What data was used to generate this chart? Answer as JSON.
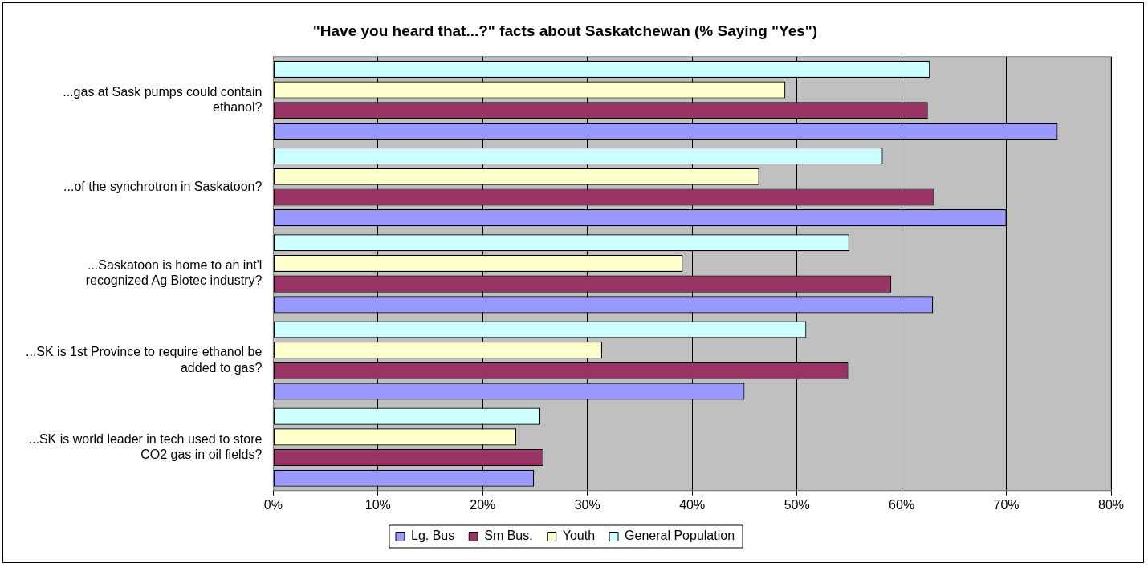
{
  "chart_data": {
    "type": "bar",
    "orientation": "horizontal",
    "title": "\"Have you heard that...?\" facts about Saskatchewan (% Saying \"Yes\")",
    "categories": [
      "...gas at Sask pumps could contain ethanol?",
      "...of the synchrotron in Saskatoon?",
      "...Saskatoon is home to an int'l recognized Ag Biotec industry?",
      "...SK is 1st Province to require ethanol be added to gas?",
      "...SK is world leader in tech used to store CO2 gas in oil fields?"
    ],
    "series": [
      {
        "name": "Lg. Bus",
        "color": "#9999ff",
        "values": [
          74.9,
          70.0,
          63.0,
          45.0,
          24.9
        ]
      },
      {
        "name": "Sm Bus.",
        "color": "#993366",
        "values": [
          62.5,
          63.1,
          59.0,
          54.9,
          25.8
        ]
      },
      {
        "name": "Youth",
        "color": "#ffffcc",
        "values": [
          48.9,
          46.4,
          39.1,
          31.4,
          23.2
        ]
      },
      {
        "name": "General Population",
        "color": "#ccffff",
        "values": [
          62.7,
          58.2,
          55.0,
          50.9,
          25.5
        ]
      }
    ],
    "xlim": [
      0,
      80
    ],
    "xticks": [
      {
        "value": 0,
        "label": "0%"
      },
      {
        "value": 10,
        "label": "10%"
      },
      {
        "value": 20,
        "label": "20%"
      },
      {
        "value": 30,
        "label": "30%"
      },
      {
        "value": 40,
        "label": "40%"
      },
      {
        "value": 50,
        "label": "50%"
      },
      {
        "value": 60,
        "label": "60%"
      },
      {
        "value": 70,
        "label": "70%"
      },
      {
        "value": 80,
        "label": "80%"
      }
    ],
    "grid": "x",
    "legend": "bottom"
  }
}
